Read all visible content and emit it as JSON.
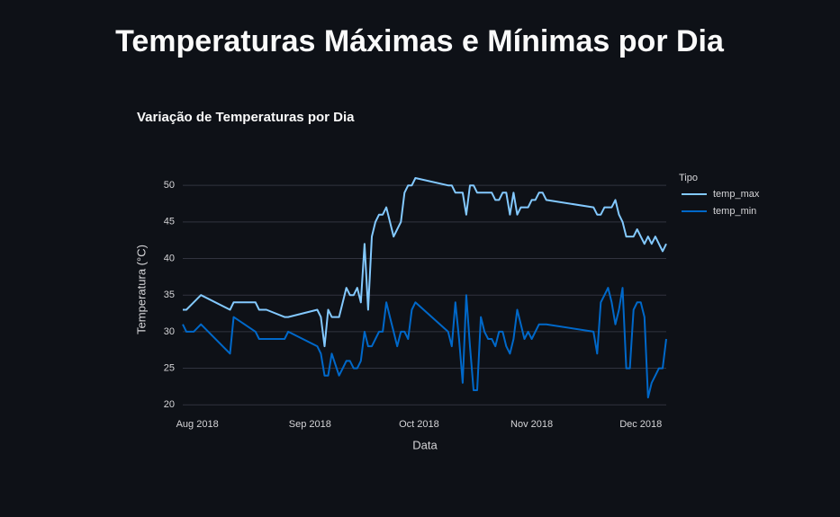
{
  "page": {
    "title": "Temperaturas Máximas e Mínimas por Dia"
  },
  "chart_data": {
    "type": "line",
    "title": "Variação de Temperaturas por Dia",
    "x_label": "Data",
    "y_label": "Temperatura (°C)",
    "legend_title": "Tipo",
    "x": [
      "2018-07-28",
      "2018-07-29",
      "2018-07-31",
      "2018-08-02",
      "2018-08-10",
      "2018-08-11",
      "2018-08-17",
      "2018-08-18",
      "2018-08-20",
      "2018-08-25",
      "2018-08-26",
      "2018-09-03",
      "2018-09-04",
      "2018-09-05",
      "2018-09-06",
      "2018-09-07",
      "2018-09-09",
      "2018-09-10",
      "2018-09-11",
      "2018-09-12",
      "2018-09-13",
      "2018-09-14",
      "2018-09-15",
      "2018-09-16",
      "2018-09-17",
      "2018-09-18",
      "2018-09-19",
      "2018-09-20",
      "2018-09-21",
      "2018-09-22",
      "2018-09-23",
      "2018-09-24",
      "2018-09-25",
      "2018-09-26",
      "2018-09-27",
      "2018-09-28",
      "2018-09-29",
      "2018-09-30",
      "2018-10-09",
      "2018-10-10",
      "2018-10-11",
      "2018-10-12",
      "2018-10-13",
      "2018-10-14",
      "2018-10-15",
      "2018-10-16",
      "2018-10-17",
      "2018-10-18",
      "2018-10-19",
      "2018-10-20",
      "2018-10-21",
      "2018-10-22",
      "2018-10-23",
      "2018-10-24",
      "2018-10-25",
      "2018-10-26",
      "2018-10-27",
      "2018-10-28",
      "2018-10-29",
      "2018-10-30",
      "2018-10-31",
      "2018-11-01",
      "2018-11-02",
      "2018-11-03",
      "2018-11-04",
      "2018-11-05",
      "2018-11-18",
      "2018-11-19",
      "2018-11-20",
      "2018-11-21",
      "2018-11-22",
      "2018-11-23",
      "2018-11-24",
      "2018-11-25",
      "2018-11-26",
      "2018-11-27",
      "2018-11-28",
      "2018-11-29",
      "2018-11-30",
      "2018-12-01",
      "2018-12-02",
      "2018-12-03",
      "2018-12-04",
      "2018-12-05",
      "2018-12-06",
      "2018-12-07",
      "2018-12-08"
    ],
    "series": [
      {
        "name": "temp_max",
        "color": "#83c9ff",
        "values": [
          33,
          33,
          34,
          35,
          33,
          34,
          34,
          33,
          33,
          32,
          32,
          33,
          32,
          28,
          33,
          32,
          32,
          34,
          36,
          35,
          35,
          36,
          34,
          42,
          33,
          43,
          45,
          46,
          46,
          47,
          45,
          43,
          44,
          45,
          49,
          50,
          50,
          51,
          50,
          50,
          49,
          49,
          49,
          46,
          50,
          50,
          49,
          49,
          49,
          49,
          49,
          48,
          48,
          49,
          49,
          46,
          49,
          46,
          47,
          47,
          47,
          48,
          48,
          49,
          49,
          48,
          47,
          46,
          46,
          47,
          47,
          47,
          48,
          46,
          45,
          43,
          43,
          43,
          44,
          43,
          42,
          43,
          42,
          43,
          42,
          41,
          42
        ]
      },
      {
        "name": "temp_min",
        "color": "#0068c9",
        "values": [
          31,
          30,
          30,
          31,
          27,
          32,
          30,
          29,
          29,
          29,
          30,
          28,
          27,
          24,
          24,
          27,
          24,
          25,
          26,
          26,
          25,
          25,
          26,
          30,
          28,
          28,
          29,
          30,
          30,
          34,
          32,
          30,
          28,
          30,
          30,
          29,
          33,
          34,
          30,
          28,
          34,
          29,
          23,
          35,
          28,
          22,
          22,
          32,
          30,
          29,
          29,
          28,
          30,
          30,
          28,
          27,
          29,
          33,
          31,
          29,
          30,
          29,
          30,
          31,
          31,
          31,
          30,
          27,
          34,
          35,
          36,
          34,
          31,
          33,
          36,
          25,
          25,
          33,
          34,
          34,
          32,
          21,
          23,
          24,
          25,
          25,
          29
        ]
      }
    ],
    "xlim": [
      "2018-07-28",
      "2018-12-08"
    ],
    "xticks": [
      {
        "value": "2018-08-01",
        "label": "Aug 2018"
      },
      {
        "value": "2018-09-01",
        "label": "Sep 2018"
      },
      {
        "value": "2018-10-01",
        "label": "Oct 2018"
      },
      {
        "value": "2018-11-01",
        "label": "Nov 2018"
      },
      {
        "value": "2018-12-01",
        "label": "Dec 2018"
      }
    ],
    "ylim": [
      18.8,
      52.6
    ],
    "yticks": [
      20,
      25,
      30,
      35,
      40,
      45,
      50
    ],
    "grid": true
  }
}
